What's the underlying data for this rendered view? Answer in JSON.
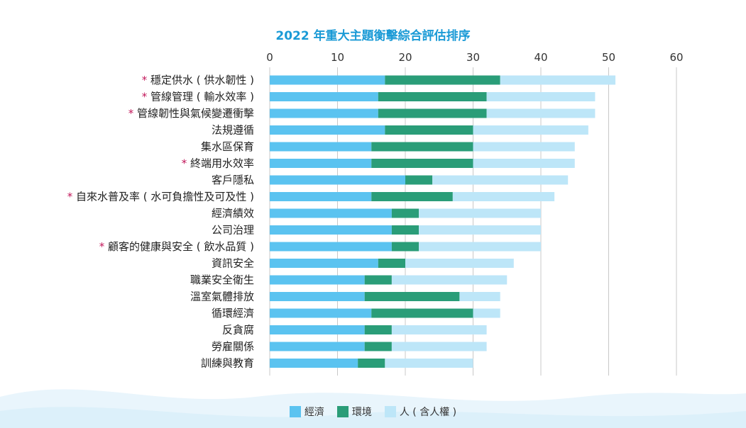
{
  "chart_data": {
    "type": "bar",
    "orientation": "horizontal",
    "stacked": true,
    "title": "2022 年重大主題衡擊綜合評估排序",
    "x_ticks": [
      "0",
      "10",
      "20",
      "30",
      "40",
      "50",
      "60"
    ],
    "xlim": [
      0,
      60
    ],
    "grid": "vertical gridlines",
    "legend_placement": "bottom-center",
    "categories": [
      {
        "mark": "*",
        "text": "穩定供水 ( 供水韌性 )"
      },
      {
        "mark": "*",
        "text": "管線管理 ( 輸水效率 )"
      },
      {
        "mark": "*",
        "text": "管線韌性與氣候變遷衝擊"
      },
      {
        "mark": "",
        "text": "法規遵循"
      },
      {
        "mark": "",
        "text": "集水區保育"
      },
      {
        "mark": "*",
        "text": "終端用水效率"
      },
      {
        "mark": "",
        "text": "客戶隱私"
      },
      {
        "mark": "*",
        "text": "自來水普及率 ( 水可負擔性及可及性 )"
      },
      {
        "mark": "",
        "text": "經濟績效"
      },
      {
        "mark": "",
        "text": "公司治理"
      },
      {
        "mark": "*",
        "text": "顧客的健康與安全 ( 飲水品質 )"
      },
      {
        "mark": "",
        "text": "資訊安全"
      },
      {
        "mark": "",
        "text": "職業安全衛生"
      },
      {
        "mark": "",
        "text": "溫室氣體排放"
      },
      {
        "mark": "",
        "text": "循環經濟"
      },
      {
        "mark": "",
        "text": "反貪腐"
      },
      {
        "mark": "",
        "text": "勞雇關係"
      },
      {
        "mark": "",
        "text": "訓練與教育"
      }
    ],
    "series": [
      {
        "name": "經濟",
        "color": "#5bc3f0",
        "values": [
          17,
          16,
          16,
          17,
          15,
          15,
          20,
          15,
          18,
          18,
          18,
          16,
          14,
          14,
          15,
          14,
          14,
          13
        ]
      },
      {
        "name": "環境",
        "color": "#2a9d78",
        "values": [
          17,
          16,
          16,
          13,
          15,
          15,
          4,
          12,
          4,
          4,
          4,
          4,
          4,
          14,
          15,
          4,
          4,
          4
        ]
      },
      {
        "name": "人 ( 含人權 )",
        "color": "#bde6f8",
        "values": [
          17,
          16,
          16,
          17,
          15,
          15,
          20,
          15,
          18,
          18,
          18,
          16,
          17,
          6,
          4,
          14,
          14,
          13
        ]
      }
    ],
    "marker_color": "#c2185b"
  }
}
